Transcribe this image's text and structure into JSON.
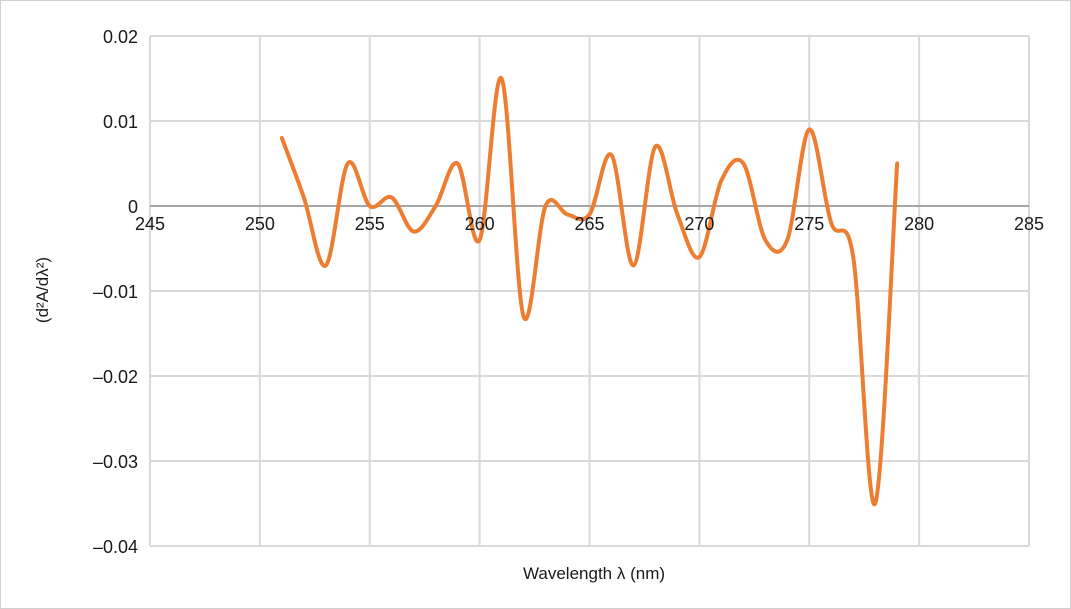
{
  "chart_data": {
    "type": "line",
    "title": "",
    "xlabel": "Wavelength λ (nm)",
    "ylabel": "(d²A/dλ²)",
    "xlim": [
      245,
      285
    ],
    "ylim": [
      -0.04,
      0.02
    ],
    "x_ticks": [
      245,
      250,
      255,
      260,
      265,
      270,
      275,
      280,
      285
    ],
    "x_tick_labels": [
      "245",
      "250",
      "255",
      "260",
      "265",
      "270",
      "275",
      "280",
      "285"
    ],
    "y_ticks": [
      0.02,
      0.01,
      0,
      -0.01,
      -0.02,
      -0.03,
      -0.04
    ],
    "y_tick_labels": [
      "0.02",
      "0.01",
      "0",
      "–0.01",
      "–0.02",
      "–0.03",
      "–0.04"
    ],
    "grid": true,
    "series": [
      {
        "color": "#ED7D31",
        "x": [
          251,
          252,
          253,
          254,
          255,
          256,
          257,
          258,
          259,
          260,
          261,
          262,
          263,
          264,
          265,
          266,
          267,
          268,
          269,
          270,
          271,
          272,
          273,
          274,
          275,
          276,
          277,
          278,
          279
        ],
        "y": [
          0.008,
          0.001,
          -0.007,
          0.005,
          0.0,
          0.001,
          -0.003,
          0.0,
          0.005,
          -0.004,
          0.015,
          -0.013,
          0.0,
          -0.001,
          -0.001,
          0.006,
          -0.007,
          0.007,
          -0.001,
          -0.006,
          0.003,
          0.005,
          -0.004,
          -0.004,
          0.009,
          -0.002,
          -0.006,
          -0.035,
          0.005
        ]
      }
    ]
  }
}
